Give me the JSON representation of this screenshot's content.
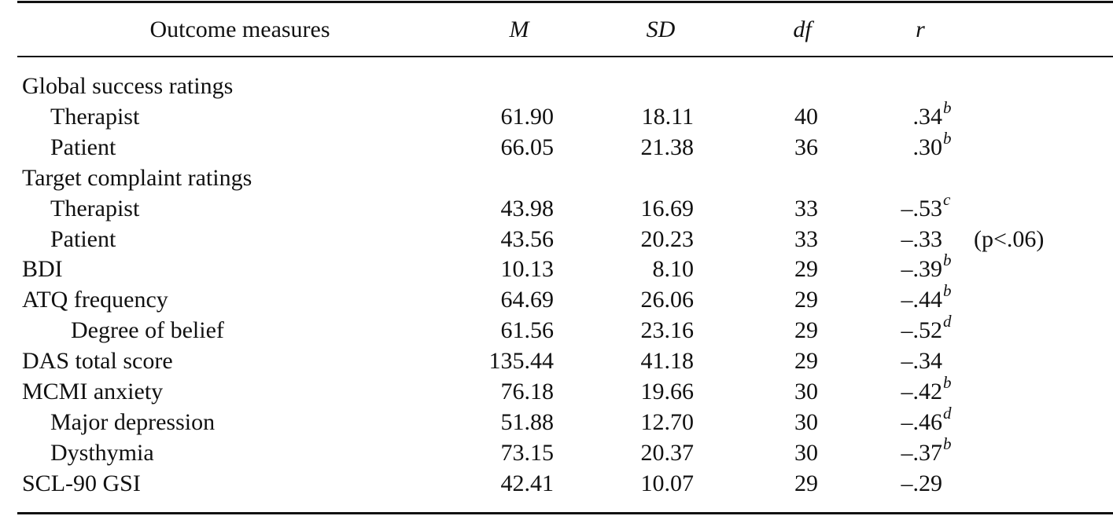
{
  "table": {
    "header": [
      "Outcome measures",
      "M",
      "SD",
      "df",
      "r"
    ],
    "rows": [
      {
        "label": "Global success ratings"
      },
      {
        "label": "Therapist",
        "M": "61.90",
        "SD": "18.11",
        "df": "40",
        "r": ".34",
        "sup": "b"
      },
      {
        "label": "Patient",
        "M": "66.05",
        "SD": "21.38",
        "df": "36",
        "r": ".30",
        "sup": "b"
      },
      {
        "label": "Target complaint ratings"
      },
      {
        "label": "Therapist",
        "M": "43.98",
        "SD": "16.69",
        "df": "33",
        "r": "–.53",
        "sup": "c"
      },
      {
        "label": "Patient",
        "M": "43.56",
        "SD": "20.23",
        "df": "33",
        "r": "–.33",
        "note": "(p<.06)"
      },
      {
        "label": "BDI",
        "M": "10.13",
        "SD": "8.10",
        "df": "29",
        "r": "–.39",
        "sup": "b"
      },
      {
        "label": "ATQ frequency",
        "M": "64.69",
        "SD": "26.06",
        "df": "29",
        "r": "–.44",
        "sup": "b"
      },
      {
        "label": "Degree of belief",
        "M": "61.56",
        "SD": "23.16",
        "df": "29",
        "r": "–.52",
        "sup": "d"
      },
      {
        "label": "DAS total score",
        "M": "135.44",
        "SD": "41.18",
        "df": "29",
        "r": "–.34"
      },
      {
        "label": "MCMI anxiety",
        "M": "76.18",
        "SD": "19.66",
        "df": "30",
        "r": "–.42",
        "sup": "b"
      },
      {
        "label": "Major depression",
        "M": "51.88",
        "SD": "12.70",
        "df": "30",
        "r": "–.46",
        "sup": "d"
      },
      {
        "label": "Dysthymia",
        "M": "73.15",
        "SD": "20.37",
        "df": "30",
        "r": "–.37",
        "sup": "b"
      },
      {
        "label": "SCL-90 GSI",
        "M": "42.41",
        "SD": "10.07",
        "df": "29",
        "r": "–.29"
      }
    ]
  }
}
